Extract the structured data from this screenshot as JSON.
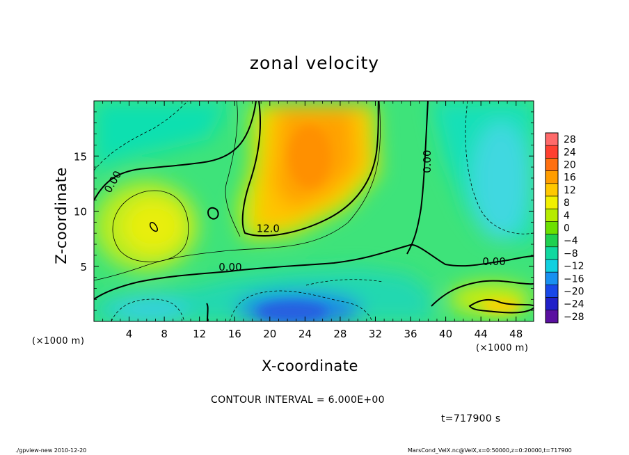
{
  "title": "zonal velocity",
  "footer": {
    "left": "./gpview-new  2010-12-20",
    "right": "MarsCond_VelX.nc@VelX,x=0:50000,z=0:20000,t=717900"
  },
  "contour_interval": "CONTOUR INTERVAL = 6.000E+00",
  "time_label": "t=717900 s",
  "colors": {
    "background": "#ffffff",
    "field_base": "#2fe37a"
  },
  "chart_data": {
    "type": "heatmap",
    "title": "zonal velocity",
    "xlabel": "X-coordinate",
    "ylabel": "Z-coordinate",
    "x_unit_label": "(×1000 m)",
    "x_ticks": [
      4,
      8,
      12,
      16,
      20,
      24,
      28,
      32,
      36,
      40,
      44,
      48
    ],
    "y_ticks": [
      5,
      10,
      15
    ],
    "xlim": [
      0,
      50
    ],
    "ylim": [
      0,
      20
    ],
    "colorbar": {
      "labels": [
        "28",
        "24",
        "20",
        "16",
        "12",
        "8",
        "4",
        "0",
        "−4",
        "−8",
        "−12",
        "−16",
        "−20",
        "−24",
        "−28"
      ],
      "values": [
        28,
        24,
        20,
        16,
        12,
        8,
        4,
        0,
        -4,
        -8,
        -12,
        -16,
        -20,
        -24,
        -28
      ],
      "colors": [
        "#ff6a6a",
        "#ff4030",
        "#ff7010",
        "#ff9d00",
        "#ffc800",
        "#f2f000",
        "#b6ec00",
        "#6ce000",
        "#1fd050",
        "#10d8a0",
        "#10d0e0",
        "#1890f0",
        "#1848e8",
        "#2020c8",
        "#5a10a0"
      ]
    },
    "contour_labels": [
      {
        "text": "0.00",
        "x": 2.5,
        "z": 12.5
      },
      {
        "text": "12.0",
        "x": 19.8,
        "z": 8.1
      },
      {
        "text": "0.00",
        "x": 15.5,
        "z": 4.6
      },
      {
        "text": "0.00",
        "x": 38.3,
        "z": 14.5
      },
      {
        "text": "0.00",
        "x": 45.5,
        "z": 5.1
      }
    ],
    "regions": [
      {
        "name": "positive-upper-core",
        "center": [
          25,
          14
        ],
        "max_value": 17
      },
      {
        "name": "positive-left-cell",
        "center": [
          6.5,
          8.5
        ],
        "max_value": 10
      },
      {
        "name": "positive-lower-right",
        "center": [
          46,
          1.5
        ],
        "max_value": 10
      },
      {
        "name": "negative-lower-core",
        "center": [
          22,
          1.2
        ],
        "min_value": -20
      },
      {
        "name": "negative-upper-right",
        "center": [
          46,
          11
        ],
        "min_value": -8
      }
    ]
  }
}
